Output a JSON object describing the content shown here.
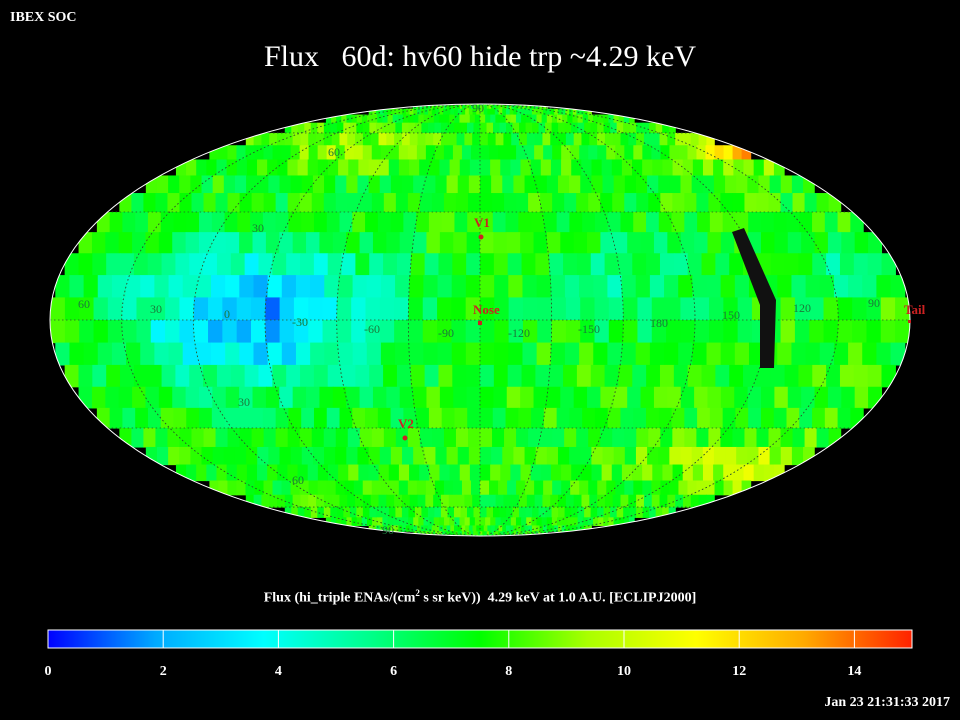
{
  "header": {
    "corner_label": "IBEX SOC",
    "title": "Flux   60d: hv60 hide trp ~4.29 keV"
  },
  "map": {
    "projection": "aitoff-ellipse",
    "grid_lat_labels": [
      {
        "text": "90"
      },
      {
        "text": "60"
      },
      {
        "text": "30"
      },
      {
        "text": "30"
      },
      {
        "text": "60"
      },
      {
        "text": "90"
      }
    ],
    "grid_lon_labels": [
      "60",
      "30",
      "0",
      "-30",
      "-60",
      "-90",
      "-120",
      "-150",
      "180",
      "150",
      "120",
      "90"
    ],
    "markers": [
      {
        "label": "V1"
      },
      {
        "label": "Nose"
      },
      {
        "label": "V2"
      },
      {
        "label": "Tail"
      }
    ],
    "marker_color": "#cc2222",
    "grid_label_color": "#1a7a3a"
  },
  "colorbar": {
    "title_prefix": "Flux (hi_triple ENAs/(cm",
    "title_sup": "2",
    "title_suffix": " s sr keV))  4.29 keV at 1.0 A.U. [ECLIPJ2000]",
    "min": 0,
    "max": 15,
    "ticks": [
      "0",
      "2",
      "4",
      "6",
      "8",
      "10",
      "12",
      "14"
    ],
    "tick_values": [
      0,
      2,
      4,
      6,
      8,
      10,
      12,
      14
    ],
    "stops": [
      "#0000ff",
      "#00aaff",
      "#00ffff",
      "#00ff88",
      "#00ff00",
      "#aaff00",
      "#ffff00",
      "#ffaa00",
      "#ff2200"
    ]
  },
  "footer": {
    "timestamp": "Jan 23 21:31:33 2017"
  }
}
